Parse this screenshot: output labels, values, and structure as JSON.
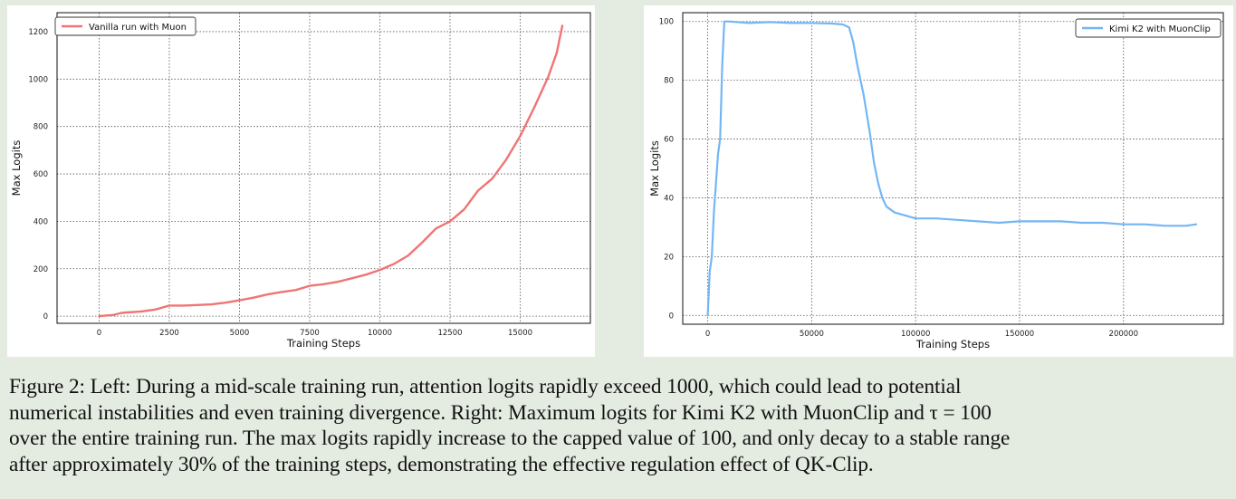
{
  "chart_data": [
    {
      "type": "line",
      "title": "",
      "xlabel": "Training Steps",
      "ylabel": "Max Logits",
      "xlim": [
        -1500,
        17500
      ],
      "ylim": [
        -30,
        1280
      ],
      "xticks": [
        0,
        2500,
        5000,
        7500,
        10000,
        12500,
        15000
      ],
      "yticks": [
        0,
        200,
        400,
        600,
        800,
        1000,
        1200
      ],
      "grid": true,
      "legend_position": "top-left",
      "series": [
        {
          "name": "Vanilla run with Muon",
          "color": "#f07474",
          "x": [
            0,
            500,
            800,
            1000,
            1500,
            2000,
            2500,
            3000,
            3500,
            4000,
            4500,
            5000,
            5500,
            6000,
            6500,
            7000,
            7500,
            8000,
            8500,
            9000,
            9500,
            10000,
            10500,
            11000,
            11500,
            12000,
            12500,
            13000,
            13500,
            14000,
            14500,
            15000,
            15500,
            16000,
            16300,
            16500
          ],
          "y": [
            0,
            5,
            14,
            16,
            20,
            28,
            45,
            45,
            47,
            50,
            57,
            67,
            78,
            92,
            102,
            110,
            128,
            135,
            145,
            160,
            175,
            195,
            220,
            255,
            310,
            370,
            400,
            450,
            530,
            580,
            660,
            760,
            880,
            1010,
            1110,
            1225
          ]
        }
      ]
    },
    {
      "type": "line",
      "title": "",
      "xlabel": "Training Steps",
      "ylabel": "Max Logits",
      "xlim": [
        -12000,
        248000
      ],
      "ylim": [
        -3,
        103
      ],
      "xticks": [
        0,
        50000,
        100000,
        150000,
        200000
      ],
      "yticks": [
        0,
        20,
        40,
        60,
        80,
        100
      ],
      "grid": true,
      "legend_position": "top-right",
      "series": [
        {
          "name": "Kimi K2 with MuonClip",
          "color": "#74b6f5",
          "x": [
            0,
            1000,
            2000,
            3000,
            4000,
            5000,
            6000,
            7000,
            8000,
            10000,
            20000,
            30000,
            40000,
            50000,
            60000,
            65000,
            68000,
            70000,
            72000,
            75000,
            78000,
            80000,
            82000,
            84000,
            86000,
            90000,
            95000,
            100000,
            110000,
            120000,
            130000,
            140000,
            150000,
            160000,
            170000,
            180000,
            190000,
            200000,
            210000,
            220000,
            230000,
            235000
          ],
          "y": [
            0,
            15,
            20,
            35,
            45,
            55,
            60,
            85,
            100,
            100,
            99.5,
            99.8,
            99.5,
            99.5,
            99.3,
            99,
            98,
            93,
            85,
            75,
            62,
            52,
            45,
            40,
            37,
            35,
            34,
            33,
            33,
            32.5,
            32,
            31.5,
            32,
            32,
            32,
            31.5,
            31.5,
            31,
            31,
            30.5,
            30.5,
            31
          ]
        }
      ]
    }
  ],
  "caption": {
    "line1": "Figure 2: Left: During a mid-scale training run, attention logits rapidly exceed 1000, which could lead to potential",
    "line2": "numerical instabilities and even training divergence. Right: Maximum logits for Kimi K2 with MuonClip and τ = 100",
    "line3": "over the entire training run. The max logits rapidly increase to the capped value of 100, and only decay to a stable range",
    "line4": "after approximately 30% of the training steps, demonstrating the effective regulation effect of QK-Clip."
  }
}
